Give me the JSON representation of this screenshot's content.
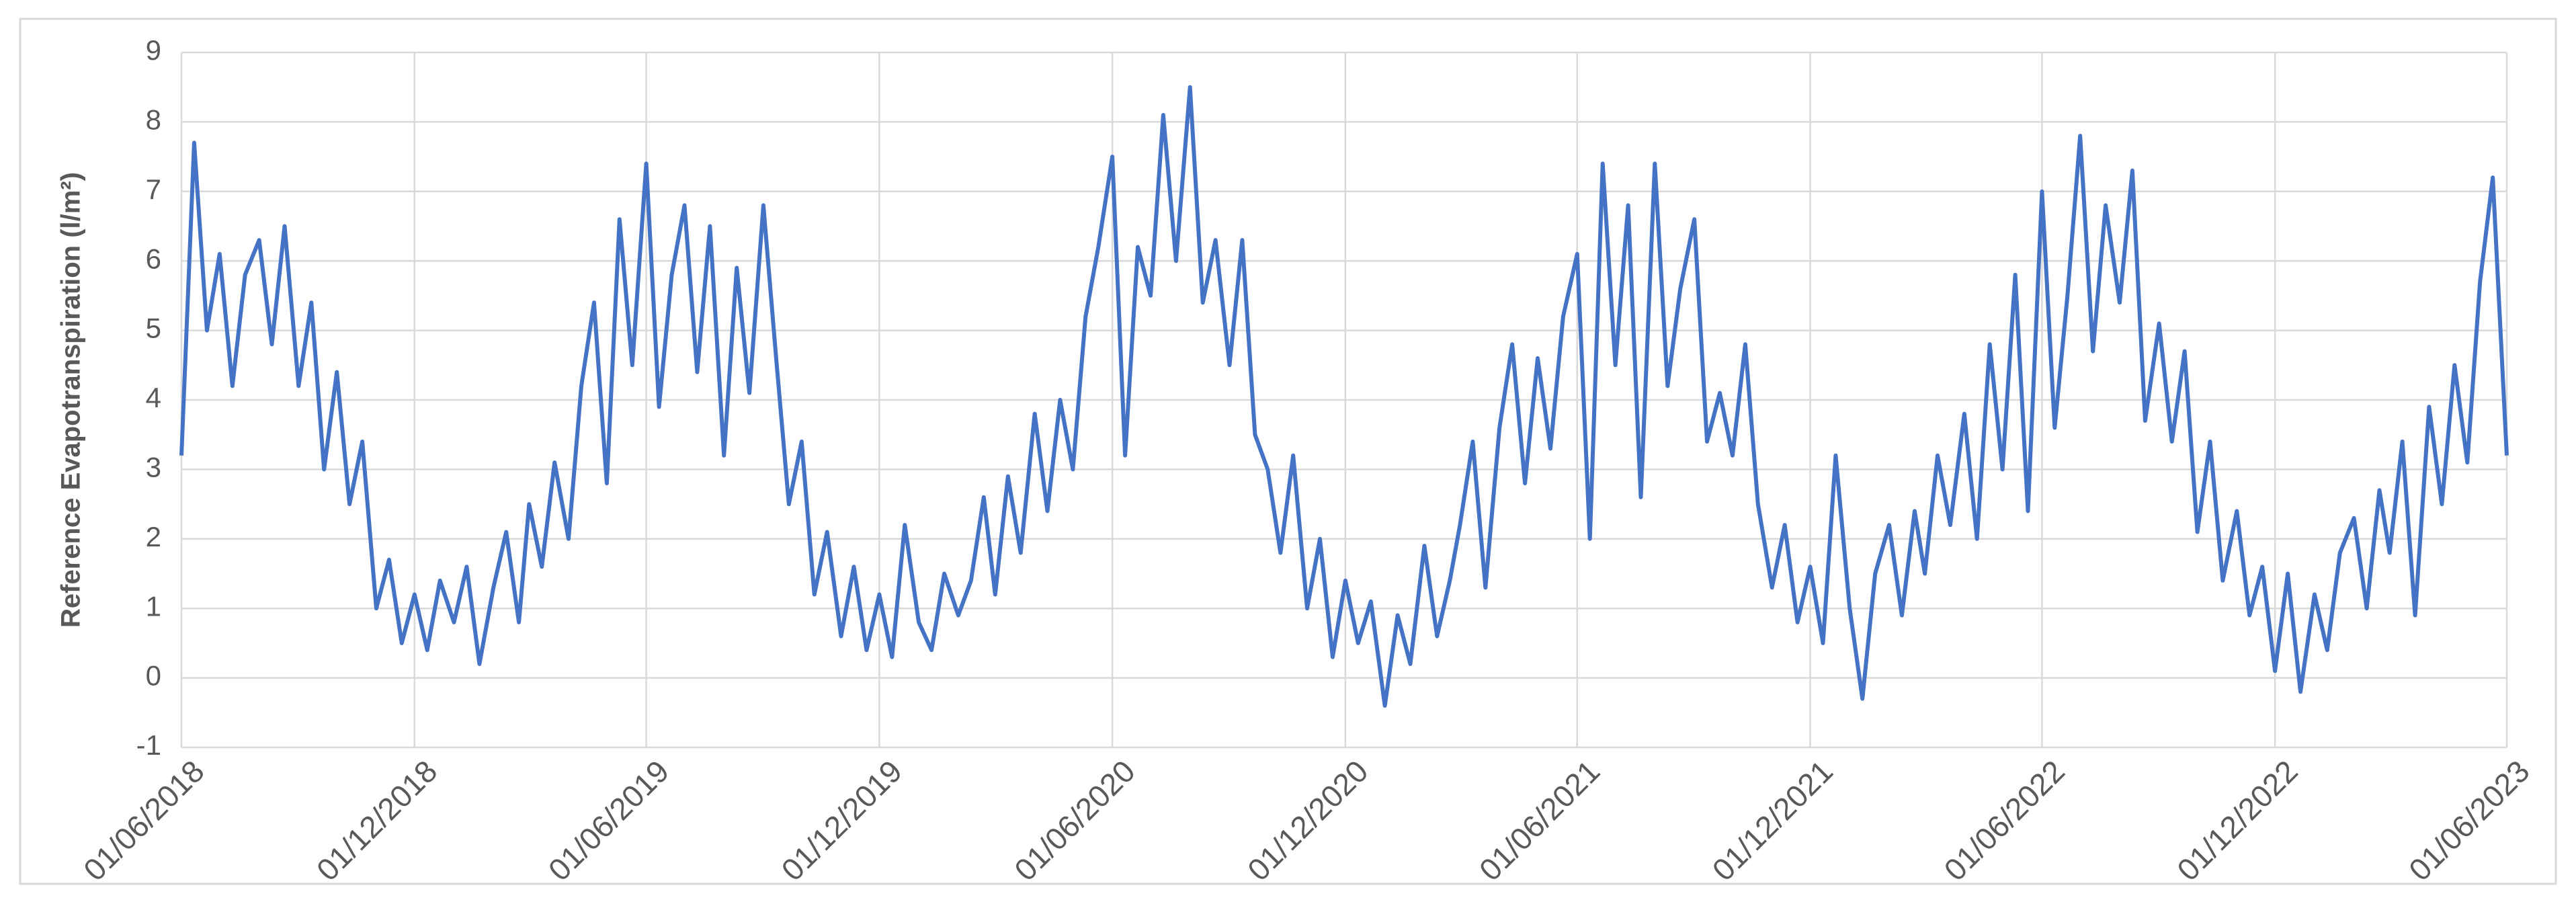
{
  "chart_data": {
    "type": "line",
    "y_label": "Reference Evapotranspiration (l/m²)",
    "x": [
      "01/06/2018",
      "11/06/2018",
      "21/06/2018",
      "01/07/2018",
      "11/07/2018",
      "21/07/2018",
      "01/08/2018",
      "11/08/2018",
      "21/08/2018",
      "01/09/2018",
      "11/09/2018",
      "21/09/2018",
      "01/10/2018",
      "11/10/2018",
      "21/10/2018",
      "01/11/2018",
      "11/11/2018",
      "21/11/2018",
      "01/12/2018",
      "11/12/2018",
      "21/12/2018",
      "01/01/2019",
      "11/01/2019",
      "21/01/2019",
      "01/02/2019",
      "11/02/2019",
      "21/02/2019",
      "01/03/2019",
      "11/03/2019",
      "21/03/2019",
      "01/04/2019",
      "11/04/2019",
      "21/04/2019",
      "01/05/2019",
      "11/05/2019",
      "21/05/2019",
      "01/06/2019",
      "11/06/2019",
      "21/06/2019",
      "01/07/2019",
      "11/07/2019",
      "21/07/2019",
      "01/08/2019",
      "11/08/2019",
      "21/08/2019",
      "01/09/2019",
      "11/09/2019",
      "21/09/2019",
      "01/10/2019",
      "11/10/2019",
      "21/10/2019",
      "01/11/2019",
      "11/11/2019",
      "21/11/2019",
      "01/12/2019",
      "11/12/2019",
      "21/12/2019",
      "01/01/2020",
      "11/01/2020",
      "21/01/2020",
      "01/02/2020",
      "11/02/2020",
      "21/02/2020",
      "01/03/2020",
      "11/03/2020",
      "21/03/2020",
      "01/04/2020",
      "11/04/2020",
      "21/04/2020",
      "01/05/2020",
      "11/05/2020",
      "21/05/2020",
      "01/06/2020",
      "11/06/2020",
      "21/06/2020",
      "01/07/2020",
      "11/07/2020",
      "21/07/2020",
      "01/08/2020",
      "11/08/2020",
      "21/08/2020",
      "01/09/2020",
      "11/09/2020",
      "21/09/2020",
      "01/10/2020",
      "11/10/2020",
      "21/10/2020",
      "01/11/2020",
      "11/11/2020",
      "21/11/2020",
      "01/12/2020",
      "11/12/2020",
      "21/12/2020",
      "01/01/2021",
      "11/01/2021",
      "21/01/2021",
      "01/02/2021",
      "11/02/2021",
      "21/02/2021",
      "01/03/2021",
      "11/03/2021",
      "21/03/2021",
      "01/04/2021",
      "11/04/2021",
      "21/04/2021",
      "01/05/2021",
      "11/05/2021",
      "21/05/2021",
      "01/06/2021",
      "11/06/2021",
      "21/06/2021",
      "01/07/2021",
      "11/07/2021",
      "21/07/2021",
      "01/08/2021",
      "11/08/2021",
      "21/08/2021",
      "01/09/2021",
      "11/09/2021",
      "21/09/2021",
      "01/10/2021",
      "11/10/2021",
      "21/10/2021",
      "01/11/2021",
      "11/11/2021",
      "21/11/2021",
      "01/12/2021",
      "11/12/2021",
      "21/12/2021",
      "01/01/2022",
      "11/01/2022",
      "21/01/2022",
      "01/02/2022",
      "11/02/2022",
      "21/02/2022",
      "01/03/2022",
      "11/03/2022",
      "21/03/2022",
      "01/04/2022",
      "11/04/2022",
      "21/04/2022",
      "01/05/2022",
      "11/05/2022",
      "21/05/2022",
      "01/06/2022",
      "11/06/2022",
      "21/06/2022",
      "01/07/2022",
      "11/07/2022",
      "21/07/2022",
      "01/08/2022",
      "11/08/2022",
      "21/08/2022",
      "01/09/2022",
      "11/09/2022",
      "21/09/2022",
      "01/10/2022",
      "11/10/2022",
      "21/10/2022",
      "01/11/2022",
      "11/11/2022",
      "21/11/2022",
      "01/12/2022",
      "11/12/2022",
      "21/12/2022",
      "01/01/2023",
      "11/01/2023",
      "21/01/2023",
      "01/02/2023",
      "11/02/2023",
      "21/02/2023",
      "01/03/2023",
      "11/03/2023",
      "21/03/2023",
      "01/04/2023",
      "11/04/2023",
      "21/04/2023",
      "01/05/2023",
      "11/05/2023",
      "21/05/2023",
      "01/06/2023"
    ],
    "series": [
      {
        "color": "#4472c4",
        "values": [
          3.2,
          7.7,
          5.0,
          6.1,
          4.2,
          5.8,
          6.3,
          4.8,
          6.5,
          4.2,
          5.4,
          3.0,
          4.4,
          2.5,
          3.4,
          1.0,
          1.7,
          0.5,
          1.2,
          0.4,
          1.4,
          0.8,
          1.6,
          0.2,
          1.3,
          2.1,
          0.8,
          2.5,
          1.6,
          3.1,
          2.0,
          4.2,
          5.4,
          2.8,
          6.6,
          4.5,
          7.4,
          3.9,
          5.8,
          6.8,
          4.4,
          6.5,
          3.2,
          5.9,
          4.1,
          6.8,
          4.6,
          2.5,
          3.4,
          1.2,
          2.1,
          0.6,
          1.6,
          0.4,
          1.2,
          0.3,
          2.2,
          0.8,
          0.4,
          1.5,
          0.9,
          1.4,
          2.6,
          1.2,
          2.9,
          1.8,
          3.8,
          2.4,
          4.0,
          3.0,
          5.2,
          6.2,
          7.5,
          3.2,
          6.2,
          5.5,
          8.1,
          6.0,
          8.5,
          5.4,
          6.3,
          4.5,
          6.3,
          3.5,
          3.0,
          1.8,
          3.2,
          1.0,
          2.0,
          0.3,
          1.4,
          0.5,
          1.1,
          -0.4,
          0.9,
          0.2,
          1.9,
          0.6,
          1.4,
          2.2,
          3.4,
          1.3,
          3.6,
          4.8,
          2.8,
          4.6,
          3.3,
          5.2,
          6.1,
          2.0,
          7.4,
          4.5,
          6.8,
          2.6,
          7.4,
          4.2,
          5.6,
          6.6,
          3.4,
          4.1,
          3.2,
          4.8,
          2.5,
          1.3,
          2.2,
          0.8,
          1.6,
          0.5,
          3.2,
          1.0,
          -0.3,
          1.5,
          2.2,
          0.9,
          2.4,
          1.5,
          3.2,
          2.2,
          3.8,
          2.0,
          4.8,
          3.0,
          5.8,
          2.4,
          7.0,
          3.6,
          5.5,
          7.8,
          4.7,
          6.8,
          5.4,
          7.3,
          3.7,
          5.1,
          3.4,
          4.7,
          2.1,
          3.4,
          1.4,
          2.4,
          0.9,
          1.6,
          0.1,
          1.5,
          -0.2,
          1.2,
          0.4,
          1.8,
          2.3,
          1.0,
          2.7,
          1.8,
          3.4,
          0.9,
          3.9,
          2.5,
          4.5,
          3.1,
          5.7,
          7.2,
          3.2
        ]
      }
    ],
    "xlim": [
      "01/06/2018",
      "01/06/2023"
    ],
    "xticks": [
      "01/06/2018",
      "01/12/2018",
      "01/06/2019",
      "01/12/2019",
      "01/06/2020",
      "01/12/2020",
      "01/06/2021",
      "01/12/2021",
      "01/06/2022",
      "01/12/2022",
      "01/06/2023"
    ],
    "ylim": [
      -1,
      9
    ],
    "yticks": [
      -1,
      0,
      1,
      2,
      3,
      4,
      5,
      6,
      7,
      8,
      9
    ],
    "grid": true
  }
}
